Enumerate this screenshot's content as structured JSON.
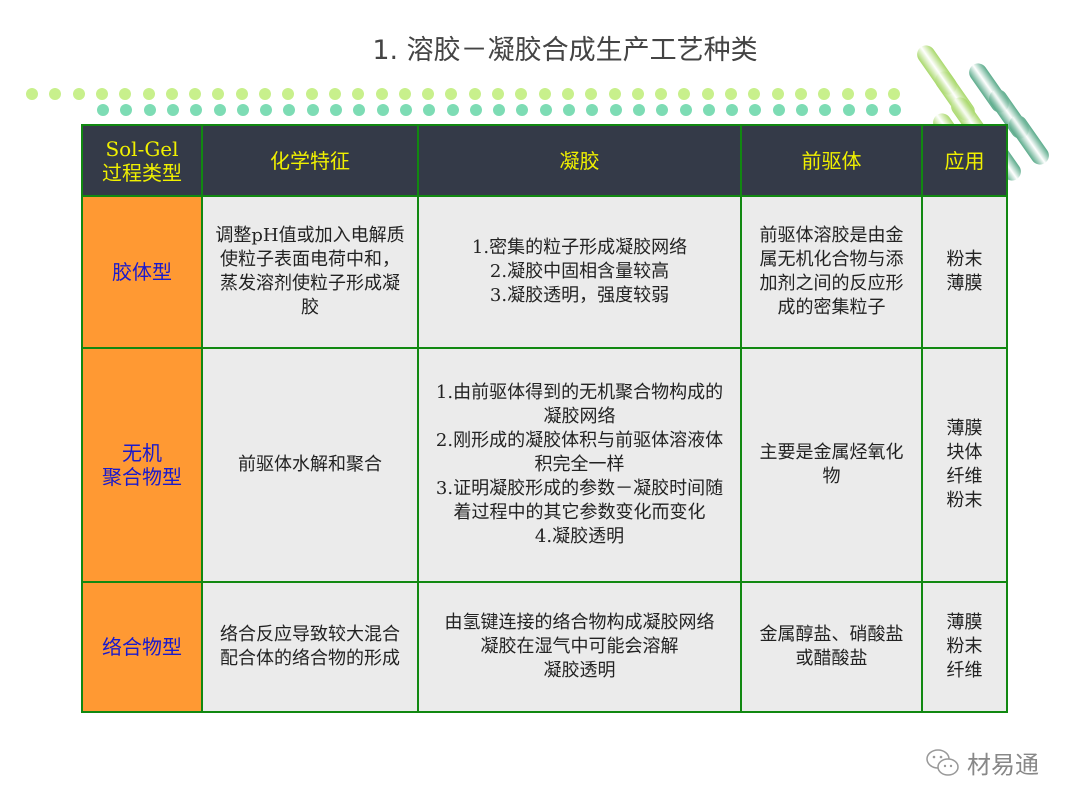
{
  "title": "1. 溶胶－凝胶合成生产工艺种类",
  "colors": {
    "header_bg": "#343a48",
    "header_text": "#f0f000",
    "type_bg": "#ff9933",
    "type_text": "#1a1acc",
    "cell_bg": "#ebebeb",
    "border": "#118811"
  },
  "table": {
    "headers": [
      "Sol-Gel\n过程类型",
      "化学特征",
      "凝胶",
      "前驱体",
      "应用"
    ],
    "rows": [
      [
        "胶体型",
        "调整pH值或加入电解质使粒子表面电荷中和，蒸发溶剂使粒子形成凝胶",
        "1.密集的粒子形成凝胶网络\n2.凝胶中固相含量较高\n3.凝胶透明，强度较弱",
        "前驱体溶胶是由金属无机化合物与添加剂之间的反应形成的密集粒子",
        "粉末\n薄膜"
      ],
      [
        "无机\n聚合物型",
        "前驱体水解和聚合",
        "1.由前驱体得到的无机聚合物构成的凝胶网络\n2.刚形成的凝胶体积与前驱体溶液体积完全一样\n3.证明凝胶形成的参数－凝胶时间随着过程中的其它参数变化而变化\n4.凝胶透明",
        "主要是金属烃氧化物",
        "薄膜\n块体\n纤维\n粉末"
      ],
      [
        "络合物型",
        "络合反应导致较大混合配合体的络合物的形成",
        "由氢键连接的络合物构成凝胶网络\n凝胶在湿气中可能会溶解\n凝胶透明",
        "金属醇盐、硝酸盐或醋酸盐",
        "薄膜\n粉末\n纤维"
      ]
    ]
  },
  "watermark": {
    "icon": "wechat-icon",
    "text": "材易通"
  }
}
